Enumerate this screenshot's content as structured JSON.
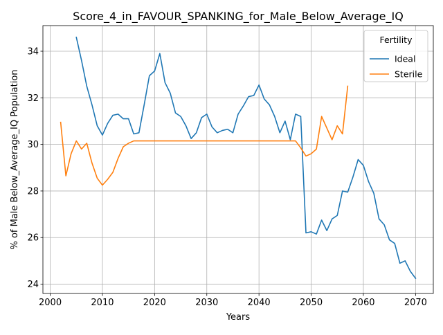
{
  "chart_data": {
    "type": "line",
    "title": "Score_4_in_FAVOUR_SPANKING_for_Male_Below_Average_IQ",
    "xlabel": "Years",
    "ylabel": "% of Male Below_Average_IQ Population",
    "xlim": [
      1998.6,
      2073.4
    ],
    "ylim": [
      23.6,
      35.1
    ],
    "xticks": [
      2000,
      2010,
      2020,
      2030,
      2040,
      2050,
      2060,
      2070
    ],
    "yticks": [
      24,
      26,
      28,
      30,
      32,
      34
    ],
    "grid": true,
    "legend": {
      "title": "Fertility",
      "position": "top-right"
    },
    "series": [
      {
        "name": "Ideal",
        "color": "#1f77b4",
        "x": [
          2005,
          2006,
          2007,
          2008,
          2009,
          2010,
          2011,
          2012,
          2013,
          2014,
          2015,
          2016,
          2017,
          2018,
          2019,
          2020,
          2021,
          2022,
          2023,
          2024,
          2025,
          2026,
          2027,
          2028,
          2029,
          2030,
          2031,
          2032,
          2033,
          2034,
          2035,
          2036,
          2037,
          2038,
          2039,
          2040,
          2041,
          2042,
          2043,
          2044,
          2045,
          2046,
          2047,
          2048,
          2049,
          2050,
          2051,
          2052,
          2053,
          2054,
          2055,
          2056,
          2057,
          2058,
          2059,
          2060,
          2061,
          2062,
          2063,
          2064,
          2065,
          2066,
          2067,
          2068,
          2069,
          2070
        ],
        "values": [
          34.6,
          33.6,
          32.5,
          31.7,
          30.8,
          30.4,
          30.9,
          31.25,
          31.3,
          31.1,
          31.1,
          30.45,
          30.5,
          31.7,
          32.95,
          33.15,
          33.9,
          32.65,
          32.2,
          31.35,
          31.2,
          30.8,
          30.25,
          30.5,
          31.15,
          31.3,
          30.75,
          30.5,
          30.6,
          30.65,
          30.5,
          31.3,
          31.65,
          32.05,
          32.1,
          32.55,
          31.95,
          31.7,
          31.2,
          30.5,
          31.0,
          30.2,
          31.3,
          31.2,
          26.2,
          26.25,
          26.15,
          26.75,
          26.3,
          26.8,
          26.95,
          28.0,
          27.95,
          28.6,
          29.35,
          29.1,
          28.4,
          27.9,
          26.8,
          26.55,
          25.9,
          25.75,
          24.9,
          25.0,
          24.55,
          24.25
        ]
      },
      {
        "name": "Sterile",
        "color": "#ff7f0e",
        "x": [
          2002,
          2003,
          2004,
          2005,
          2006,
          2007,
          2008,
          2009,
          2010,
          2011,
          2012,
          2013,
          2014,
          2015,
          2016,
          2017,
          2018,
          2019,
          2020,
          2021,
          2022,
          2023,
          2024,
          2025,
          2026,
          2027,
          2028,
          2029,
          2030,
          2031,
          2032,
          2033,
          2034,
          2035,
          2036,
          2037,
          2038,
          2039,
          2040,
          2041,
          2042,
          2043,
          2044,
          2045,
          2046,
          2047,
          2048,
          2049,
          2050,
          2051,
          2052,
          2053,
          2054,
          2055,
          2056,
          2057
        ],
        "values": [
          30.95,
          28.65,
          29.6,
          30.15,
          29.8,
          30.05,
          29.2,
          28.55,
          28.25,
          28.5,
          28.8,
          29.4,
          29.9,
          30.05,
          30.15,
          30.15,
          30.15,
          30.15,
          30.15,
          30.15,
          30.15,
          30.15,
          30.15,
          30.15,
          30.15,
          30.15,
          30.15,
          30.15,
          30.15,
          30.15,
          30.15,
          30.15,
          30.15,
          30.15,
          30.15,
          30.15,
          30.15,
          30.15,
          30.15,
          30.15,
          30.15,
          30.15,
          30.15,
          30.15,
          30.15,
          30.15,
          29.85,
          29.5,
          29.6,
          29.8,
          31.2,
          30.7,
          30.2,
          30.8,
          30.45,
          32.5
        ]
      }
    ]
  }
}
